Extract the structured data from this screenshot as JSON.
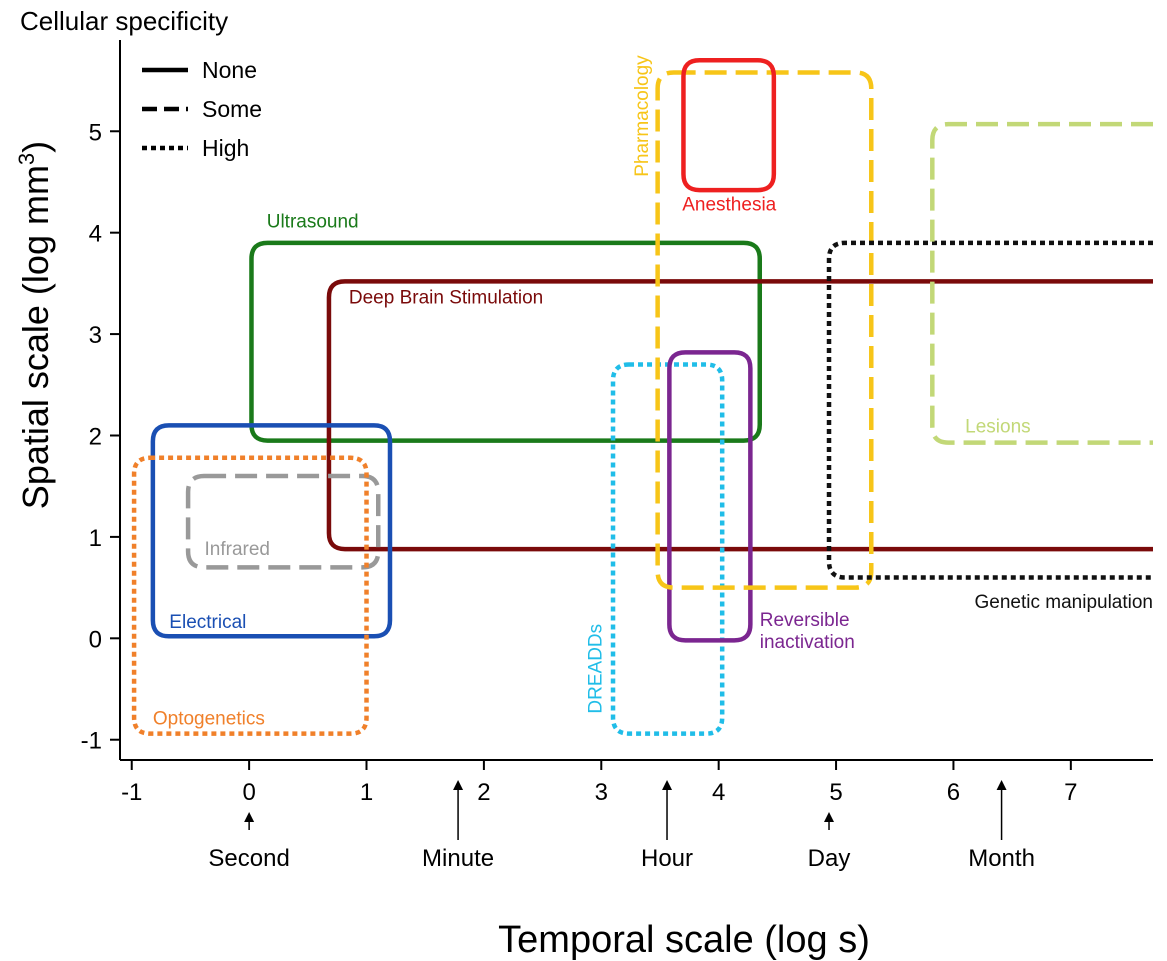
{
  "chart_data": {
    "type": "area",
    "title": "",
    "xlabel": "Temporal scale (log s)",
    "ylabel_main": "Spatial scale (log mm",
    "ylabel_sup": "3",
    "ylabel_close": ")",
    "xlim": [
      -1.1,
      7.7
    ],
    "ylim": [
      -1.2,
      5.9
    ],
    "xticks": [
      -1,
      0,
      1,
      2,
      3,
      4,
      5,
      6,
      7
    ],
    "yticks": [
      -1,
      0,
      1,
      2,
      3,
      4,
      5
    ],
    "time_markers": [
      {
        "label": "Second",
        "x": 0
      },
      {
        "label": "Minute",
        "x": 1.78
      },
      {
        "label": "Hour",
        "x": 3.56
      },
      {
        "label": "Day",
        "x": 4.94
      },
      {
        "label": "Month",
        "x": 6.41
      }
    ],
    "legend": {
      "title": "Cellular specificity",
      "placement": "top-left",
      "entries": [
        {
          "label": "None",
          "style": "solid"
        },
        {
          "label": "Some",
          "style": "dashed"
        },
        {
          "label": "High",
          "style": "dotted"
        }
      ]
    },
    "series": [
      {
        "name": "Ultrasound",
        "color": "#1a7a1a",
        "style": "solid",
        "x": [
          0.02,
          4.35
        ],
        "y": [
          1.95,
          3.9
        ],
        "label_at": [
          0.15,
          4.05
        ]
      },
      {
        "name": "Deep Brain Stimulation",
        "color": "#7a0a0a",
        "style": "solid",
        "x": [
          0.68,
          7.7
        ],
        "y": [
          0.88,
          3.52
        ],
        "open_right": true,
        "label_at": [
          0.85,
          3.3
        ]
      },
      {
        "name": "Electrical",
        "color": "#1a4fb3",
        "style": "solid",
        "x": [
          -0.82,
          1.2
        ],
        "y": [
          0.02,
          2.1
        ],
        "label_at": [
          -0.68,
          0.1
        ]
      },
      {
        "name": "Infrared",
        "color": "#999999",
        "style": "dashed",
        "x": [
          -0.52,
          1.1
        ],
        "y": [
          0.7,
          1.6
        ],
        "label_at": [
          -0.38,
          0.82
        ]
      },
      {
        "name": "Optogenetics",
        "color": "#f0802a",
        "style": "dotted",
        "x": [
          -0.98,
          1.0
        ],
        "y": [
          -0.94,
          1.78
        ],
        "label_at": [
          -0.82,
          -0.85
        ]
      },
      {
        "name": "DREADDs",
        "color": "#20bde8",
        "style": "dotted",
        "x": [
          3.1,
          4.03
        ],
        "y": [
          -0.94,
          2.7
        ],
        "label_rotated": true,
        "label_at": [
          3.0,
          -0.3
        ]
      },
      {
        "name": "Reversible inactivation",
        "color": "#7b2690",
        "style": "solid",
        "x": [
          3.58,
          4.27
        ],
        "y": [
          -0.02,
          2.82
        ],
        "label_lines": [
          "Reversible",
          "inactivation"
        ],
        "label_at": [
          4.35,
          0.12
        ]
      },
      {
        "name": "Pharmacology",
        "color": "#f7c518",
        "style": "dashed",
        "x": [
          3.48,
          5.3
        ],
        "y": [
          0.5,
          5.58
        ],
        "label_rotated": true,
        "label_at": [
          3.4,
          5.15
        ]
      },
      {
        "name": "Anesthesia",
        "color": "#ee2020",
        "style": "solid",
        "x": [
          3.7,
          4.47
        ],
        "y": [
          4.42,
          5.7
        ],
        "label_at": [
          4.09,
          4.22
        ]
      },
      {
        "name": "Genetic manipulation",
        "color": "#111111",
        "style": "dotted",
        "x": [
          4.94,
          7.7
        ],
        "y": [
          0.6,
          3.9
        ],
        "open_right": true,
        "label_at": [
          7.7,
          0.3
        ]
      },
      {
        "name": "Lesions",
        "color": "#c2d877",
        "style": "dashed",
        "x": [
          5.82,
          7.7
        ],
        "y": [
          1.93,
          5.07
        ],
        "open_right": true,
        "label_at": [
          6.1,
          2.03
        ]
      }
    ]
  }
}
